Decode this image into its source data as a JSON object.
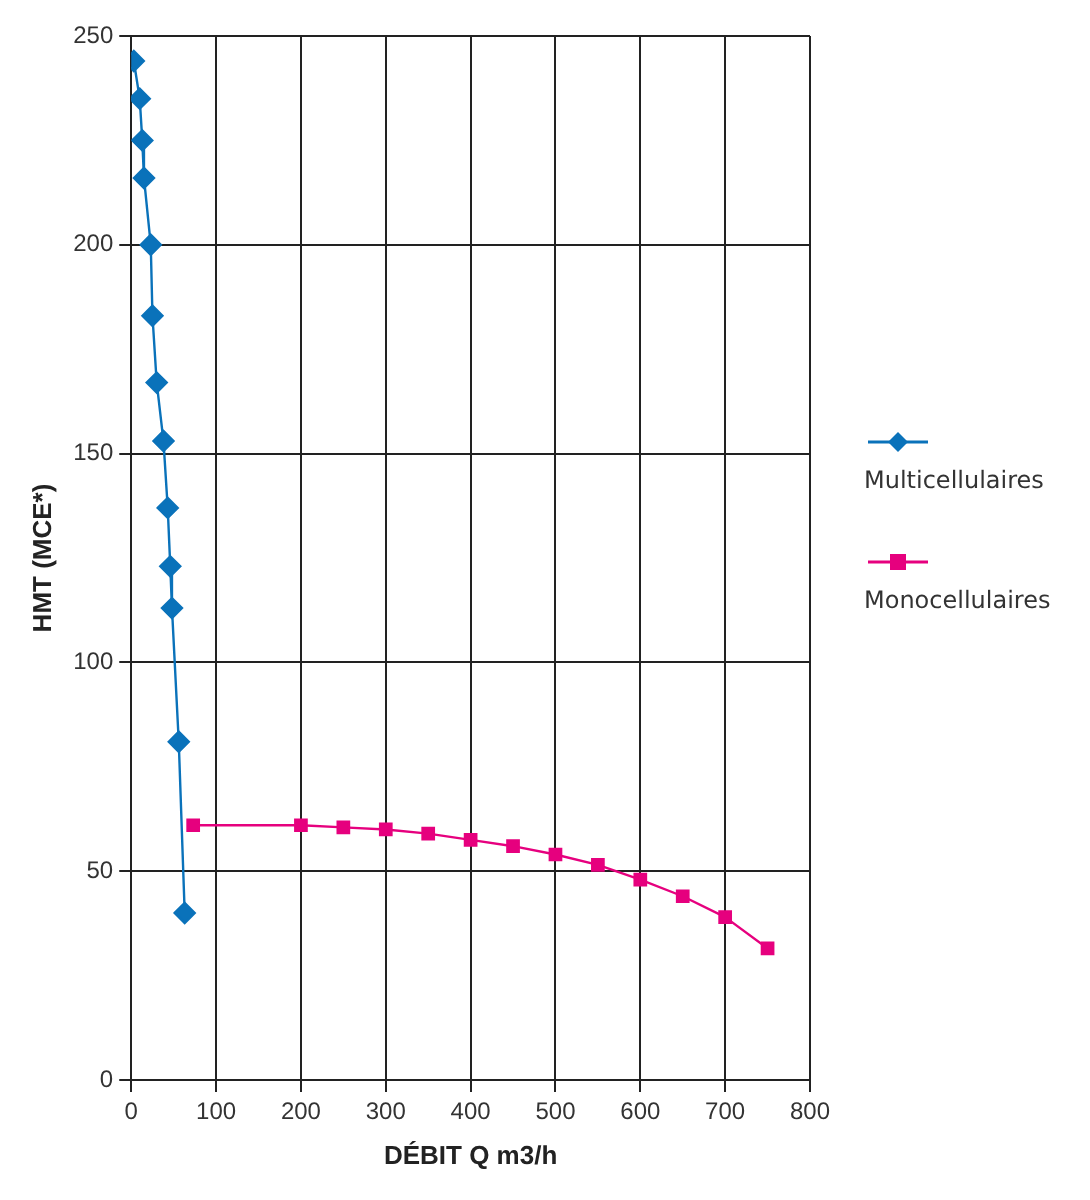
{
  "chart_data": {
    "type": "line",
    "xlabel": "DÉBIT Q m3/h",
    "ylabel": "HMT (MCE*)",
    "xlim": [
      0,
      800
    ],
    "xticks": [
      0,
      100,
      200,
      300,
      400,
      500,
      600,
      700,
      800
    ],
    "ylim": [
      0,
      250
    ],
    "yticks": [
      0,
      50,
      100,
      150,
      200,
      250
    ],
    "grid": true,
    "legend": "right",
    "series": [
      {
        "name": "Multicellulaires",
        "color": "#0a72ba",
        "marker": "diamond",
        "x": [
          3,
          10,
          13,
          15,
          23,
          25,
          30,
          38,
          43,
          46,
          48,
          56,
          63
        ],
        "values": [
          244,
          235,
          225,
          216,
          200,
          183,
          167,
          153,
          137,
          123,
          113,
          81,
          40
        ]
      },
      {
        "name": "Monocellulaires",
        "color": "#e6007e",
        "marker": "square",
        "x": [
          73,
          200,
          250,
          300,
          350,
          400,
          450,
          500,
          550,
          600,
          650,
          700,
          750
        ],
        "values": [
          61,
          61,
          60.5,
          60,
          59,
          57.5,
          56,
          54,
          51.5,
          48,
          44,
          39,
          31.5
        ]
      }
    ]
  }
}
